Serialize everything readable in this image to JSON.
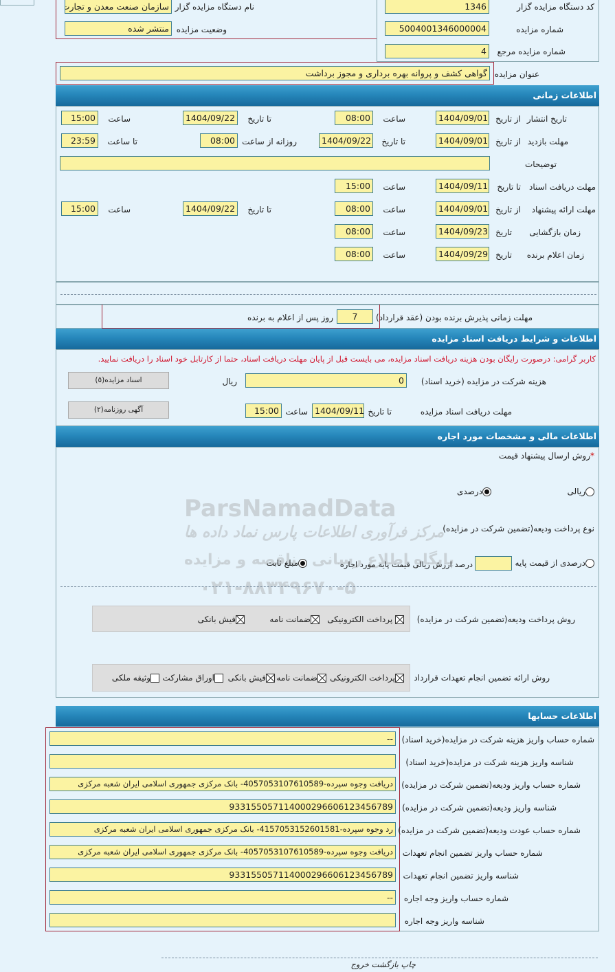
{
  "general": {
    "org_code_label": "کد دستگاه مزایده گزار",
    "org_code": "1346",
    "org_name_label": "نام دستگاه مزایده گزار",
    "org_name": "سازمان صنعت معدن و تجارت",
    "auction_no_label": "شماره مزایده",
    "auction_no": "5004001346000004",
    "status_label": "وضعیت مزایده",
    "status": "منتشر شده",
    "ref_no_label": "شماره مزایده مرجع",
    "ref_no": "4",
    "title_label": "عنوان مزایده",
    "title": "گواهی کشف و پروانه بهره برداری و مجوز برداشت"
  },
  "time": {
    "header": "اطلاعات زمانی",
    "from_date": "از تاریخ",
    "to_date": "تا تاریخ",
    "date": "تاریخ",
    "hour": "ساعت",
    "daily_from_hour": "روزانه از ساعت",
    "to_hour": "تا ساعت",
    "publish": {
      "label": "تاریخ انتشار",
      "from": "1404/09/01",
      "from_time": "08:00",
      "to": "1404/09/22",
      "to_time": "15:00"
    },
    "visit": {
      "label": "مهلت بازدید",
      "from": "1404/09/01",
      "to": "1404/09/22",
      "from_time": "08:00",
      "to_time": "23:59"
    },
    "notes_label": "توضیحات",
    "notes": "",
    "doc_receive": {
      "label": "مهلت دریافت اسناد",
      "to": "1404/09/11",
      "time": "15:00"
    },
    "offer": {
      "label": "مهلت ارائه پیشنهاد",
      "from": "1404/09/01",
      "from_time": "08:00",
      "to": "1404/09/22",
      "to_time": "15:00"
    },
    "opening": {
      "label": "زمان بازگشایی",
      "date": "1404/09/23",
      "time": "08:00"
    },
    "winner": {
      "label": "زمان اعلام برنده",
      "date": "1404/09/29",
      "time": "08:00"
    },
    "acceptance": {
      "label": "مهلت زمانی پذیرش برنده بودن (عقد قرارداد)",
      "days": "7",
      "suffix": "روز پس از اعلام به برنده"
    }
  },
  "docs": {
    "header": "اطلاعات و شرایط دریافت اسناد مزایده",
    "notice": "کاربر گرامی: درصورت رایگان بودن هزینه دریافت اسناد مزایده، می بایست قبل از پایان مهلت دریافت اسناد، حتما از کارتابل خود اسناد را دریافت نمایید.",
    "fee_label": "هزینه شرکت در مزایده (خرید اسناد)",
    "fee": "0",
    "currency": "ریال",
    "docs_button": "اسناد مزایده(٥)",
    "deadline_label": "مهلت دریافت اسناد مزایده",
    "to_date_label": "تا تاریخ",
    "to_date": "1404/09/11",
    "hour_label": "ساعت",
    "hour": "15:00",
    "newspaper_button": "آگهی روزنامه(٢)"
  },
  "financial": {
    "header": "اطلاعات مالی و مشخصات مورد اجاره",
    "required_mark": "*",
    "price_method_label": "روش ارسال پیشنهاد قیمت",
    "rial_option": "ریالی",
    "percent_option": "درصدی",
    "price_method_selected": "درصدی",
    "deposit_type_label": "نوع پرداخت ودیعه(تضمین شرکت در مزایده)",
    "deposit_percent_option": "درصدی از قیمت پایه",
    "deposit_percent_value": "",
    "deposit_percent_suffix": "درصد ارزش ریالی قیمت پایه مورد اجاره",
    "deposit_fixed_option": "مبلغ ثابت",
    "deposit_selected": "مبلغ ثابت",
    "deposit_method_label": "روش پرداخت ودیعه(تضمین شرکت در مزایده)",
    "deposit_methods": [
      {
        "label": "پرداخت الکترونیکی",
        "checked": true
      },
      {
        "label": "ضمانت نامه",
        "checked": true
      },
      {
        "label": "فیش بانکی",
        "checked": true
      }
    ],
    "guarantee_method_label": "روش ارائه تضمین انجام تعهدات قرارداد",
    "guarantee_methods": [
      {
        "label": "پرداخت الکترونیکی",
        "checked": true
      },
      {
        "label": "ضمانت نامه",
        "checked": true
      },
      {
        "label": "فیش بانکی",
        "checked": true
      },
      {
        "label": "اوراق مشارکت",
        "checked": false
      },
      {
        "label": "وثیقه ملکی",
        "checked": false
      }
    ]
  },
  "accounts": {
    "header": "اطلاعات حسابها",
    "rows": [
      {
        "label": "شماره حساب واریز هزینه شرکت در مزایده(خرید اسناد)",
        "value": "--"
      },
      {
        "label": "شناسه واریز هزینه شرکت در مزایده(خرید اسناد)",
        "value": ""
      },
      {
        "label": "شماره حساب واریز ودیعه(تضمین شرکت در مزایده)",
        "value": "دریافت وجوه سپرده-4057053107610589- بانک مرکزی جمهوری اسلامی ایران شعبه مرکزی"
      },
      {
        "label": "شناسه واریز ودیعه(تضمین شرکت در مزایده)",
        "value": "933155057114000296606123456789"
      },
      {
        "label": "شماره حساب عودت ودیعه(تضمین شرکت در مزایده)",
        "value": "رد وجوه سپرده-4157053152601581- بانک مرکزی جمهوری اسلامی ایران شعبه مرکزی"
      },
      {
        "label": "شماره حساب واریز تضمین انجام تعهدات",
        "value": "دریافت وجوه سپرده-4057053107610589- بانک مرکزی جمهوری اسلامی ایران شعبه مرکزی"
      },
      {
        "label": "شناسه واریز تضمین انجام تعهدات",
        "value": "933155057114000296606123456789"
      },
      {
        "label": "شماره حساب واریز وجه اجاره",
        "value": "--"
      },
      {
        "label": "شناسه واریز وجه اجاره",
        "value": ""
      }
    ]
  },
  "footer": {
    "print": "چاپ",
    "back": "بازگشت",
    "exit": "خروج"
  },
  "watermark": {
    "brand": "ParsNamadData",
    "line1": "مرکز فرآوری اطلاعات پارس نماد داده ها",
    "line2": "پایگاه اطلاع رسانی مناقصه و مزایده",
    "phone": "۰۲۱-۸۸۳۴۹۶۷۰-۵"
  }
}
